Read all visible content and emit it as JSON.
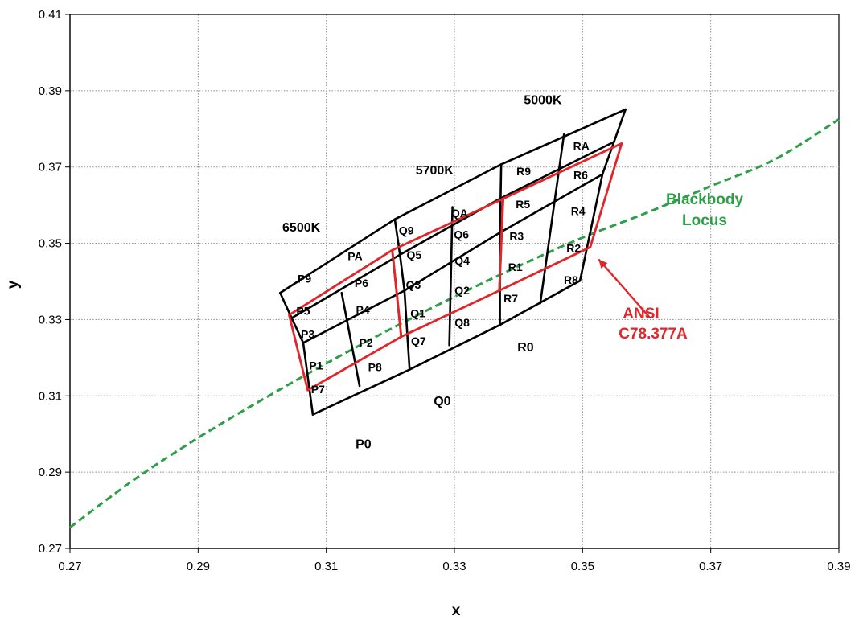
{
  "chart_data": {
    "type": "line",
    "title": "",
    "xlabel": "x",
    "ylabel": "y",
    "xlim": [
      0.27,
      0.39
    ],
    "ylim": [
      0.27,
      0.41
    ],
    "x_ticks": [
      "0.27",
      "0.29",
      "0.31",
      "0.33",
      "0.35",
      "0.37",
      "0.39"
    ],
    "y_ticks": [
      "0.27",
      "0.29",
      "0.31",
      "0.33",
      "0.35",
      "0.37",
      "0.39",
      "0.41"
    ],
    "grid": true,
    "colors": {
      "grid_black": "#000000",
      "ansi_red": "#e0262b",
      "locus_green": "#2e9e48"
    },
    "blackbody_locus": {
      "name": "Blackbody Locus",
      "line1": "Blackbody",
      "line2": "Locus",
      "x": [
        0.27,
        0.28,
        0.29,
        0.3,
        0.31,
        0.32,
        0.33,
        0.34,
        0.35,
        0.36,
        0.37,
        0.38,
        0.39
      ],
      "y": [
        0.2755,
        0.288,
        0.299,
        0.309,
        0.3185,
        0.3275,
        0.336,
        0.344,
        0.3515,
        0.358,
        0.365,
        0.372,
        0.3825
      ]
    },
    "black_grid": {
      "rows": [
        [
          [
            0.3028,
            0.337
          ],
          [
            0.3207,
            0.3563
          ],
          [
            0.3373,
            0.3707
          ],
          [
            0.3567,
            0.3851
          ]
        ],
        [
          [
            0.3046,
            0.3304
          ],
          [
            0.3215,
            0.347
          ],
          [
            0.3372,
            0.3618
          ],
          [
            0.3549,
            0.3766
          ]
        ],
        [
          [
            0.3064,
            0.3239
          ],
          [
            0.3222,
            0.3376
          ],
          [
            0.3371,
            0.3528
          ],
          [
            0.3531,
            0.3681
          ]
        ],
        [
          [
            0.3079,
            0.3051
          ],
          [
            0.323,
            0.3169
          ],
          [
            0.3371,
            0.3286
          ],
          [
            0.3496,
            0.3402
          ]
        ]
      ],
      "extra_lines": [
        [
          [
            0.3124,
            0.337
          ],
          [
            0.3152,
            0.3126
          ]
        ],
        [
          [
            0.3297,
            0.3595
          ],
          [
            0.3292,
            0.3233
          ]
        ],
        [
          [
            0.3471,
            0.3786
          ],
          [
            0.3434,
            0.3343
          ]
        ]
      ]
    },
    "ansi_quads": [
      [
        [
          0.3042,
          0.3312
        ],
        [
          0.3203,
          0.3482
        ],
        [
          0.3217,
          0.3255
        ],
        [
          0.3071,
          0.3115
        ]
      ],
      [
        [
          0.3203,
          0.3482
        ],
        [
          0.3376,
          0.3617
        ],
        [
          0.337,
          0.3376
        ],
        [
          0.3217,
          0.3255
        ]
      ],
      [
        [
          0.3376,
          0.3617
        ],
        [
          0.3561,
          0.3762
        ],
        [
          0.3512,
          0.349
        ],
        [
          0.337,
          0.3376
        ]
      ]
    ],
    "bins": [
      {
        "label": "PA",
        "x": 0.3145,
        "y": 0.3466
      },
      {
        "label": "P9",
        "x": 0.3066,
        "y": 0.3407
      },
      {
        "label": "P6",
        "x": 0.3155,
        "y": 0.3396
      },
      {
        "label": "P5",
        "x": 0.3064,
        "y": 0.3323
      },
      {
        "label": "P4",
        "x": 0.3157,
        "y": 0.3326
      },
      {
        "label": "P3",
        "x": 0.3071,
        "y": 0.3262
      },
      {
        "label": "P2",
        "x": 0.3162,
        "y": 0.324
      },
      {
        "label": "P1",
        "x": 0.3084,
        "y": 0.318
      },
      {
        "label": "P8",
        "x": 0.3176,
        "y": 0.3175
      },
      {
        "label": "P7",
        "x": 0.3087,
        "y": 0.3117
      },
      {
        "label": "QA",
        "x": 0.3308,
        "y": 0.3579
      },
      {
        "label": "Q9",
        "x": 0.3225,
        "y": 0.3534
      },
      {
        "label": "Q6",
        "x": 0.3311,
        "y": 0.3523
      },
      {
        "label": "Q5",
        "x": 0.3237,
        "y": 0.347
      },
      {
        "label": "Q4",
        "x": 0.3312,
        "y": 0.3455
      },
      {
        "label": "Q3",
        "x": 0.3236,
        "y": 0.3392
      },
      {
        "label": "Q2",
        "x": 0.3312,
        "y": 0.3377
      },
      {
        "label": "Q1",
        "x": 0.3243,
        "y": 0.3317
      },
      {
        "label": "Q8",
        "x": 0.3312,
        "y": 0.3292
      },
      {
        "label": "Q7",
        "x": 0.3244,
        "y": 0.3244
      },
      {
        "label": "RA",
        "x": 0.3498,
        "y": 0.3755
      },
      {
        "label": "R9",
        "x": 0.3408,
        "y": 0.3689
      },
      {
        "label": "R6",
        "x": 0.3497,
        "y": 0.3679
      },
      {
        "label": "R5",
        "x": 0.3407,
        "y": 0.3602
      },
      {
        "label": "R4",
        "x": 0.3493,
        "y": 0.3584
      },
      {
        "label": "R3",
        "x": 0.3397,
        "y": 0.3519
      },
      {
        "label": "R2",
        "x": 0.3486,
        "y": 0.3488
      },
      {
        "label": "R1",
        "x": 0.3395,
        "y": 0.3438
      },
      {
        "label": "R8",
        "x": 0.3482,
        "y": 0.3404
      },
      {
        "label": "R7",
        "x": 0.3388,
        "y": 0.3356
      }
    ],
    "cct_labels": [
      {
        "label": "6500K",
        "x": 0.3061,
        "y": 0.3543
      },
      {
        "label": "5700K",
        "x": 0.3269,
        "y": 0.3693
      },
      {
        "label": "5000K",
        "x": 0.3438,
        "y": 0.3878
      }
    ],
    "region_labels": [
      {
        "label": "P0",
        "x": 0.3158,
        "y": 0.2975
      },
      {
        "label": "Q0",
        "x": 0.3281,
        "y": 0.3088
      },
      {
        "label": "R0",
        "x": 0.3411,
        "y": 0.3229
      }
    ],
    "ansi_annotation": {
      "line1": "ANSI",
      "line2": "C78.377A",
      "arrow_from": [
        0.3605,
        0.3305
      ],
      "arrow_to": [
        0.3525,
        0.3458
      ]
    }
  }
}
